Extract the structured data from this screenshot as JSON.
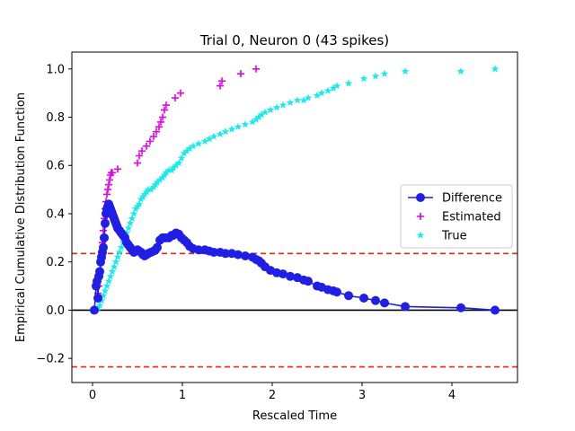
{
  "chart_data": {
    "type": "scatter",
    "title": "Trial 0, Neuron 0 (43 spikes)",
    "xlabel": "Rescaled Time",
    "ylabel": "Empirical Cumulative Distribution Function",
    "xlim": [
      -0.23,
      4.73
    ],
    "ylim": [
      -0.3,
      1.07
    ],
    "xticks": [
      0,
      1,
      2,
      3,
      4
    ],
    "xtick_labels": [
      "0",
      "1",
      "2",
      "3",
      "4"
    ],
    "yticks": [
      -0.2,
      0.0,
      0.2,
      0.4,
      0.6,
      0.8,
      1.0
    ],
    "ytick_labels": [
      "−0.2",
      "0.0",
      "0.2",
      "0.4",
      "0.6",
      "0.8",
      "1.0"
    ],
    "grid": false,
    "legend_position": "center-right",
    "reference_lines": [
      {
        "y": 0.0,
        "style": "solid",
        "color": "#000000"
      },
      {
        "y": 0.235,
        "style": "dashed",
        "color": "#e8291c"
      },
      {
        "y": -0.235,
        "style": "dashed",
        "color": "#e8291c"
      }
    ],
    "series": [
      {
        "name": "Difference",
        "kind": "line-marker",
        "marker": "circle",
        "color": "#1f1fe6",
        "x": [
          0.02,
          0.04,
          0.05,
          0.06,
          0.07,
          0.08,
          0.09,
          0.1,
          0.11,
          0.12,
          0.13,
          0.14,
          0.15,
          0.16,
          0.17,
          0.18,
          0.19,
          0.2,
          0.21,
          0.22,
          0.23,
          0.24,
          0.25,
          0.26,
          0.27,
          0.28,
          0.3,
          0.32,
          0.34,
          0.36,
          0.38,
          0.4,
          0.42,
          0.44,
          0.46,
          0.48,
          0.5,
          0.52,
          0.54,
          0.56,
          0.58,
          0.6,
          0.62,
          0.65,
          0.68,
          0.7,
          0.72,
          0.75,
          0.78,
          0.8,
          0.82,
          0.85,
          0.88,
          0.9,
          0.93,
          0.96,
          0.99,
          1.02,
          1.05,
          1.08,
          1.12,
          1.18,
          1.25,
          1.3,
          1.35,
          1.42,
          1.48,
          1.55,
          1.62,
          1.7,
          1.78,
          1.82,
          1.85,
          1.88,
          1.92,
          1.98,
          2.05,
          2.12,
          2.2,
          2.28,
          2.35,
          2.4,
          2.5,
          2.55,
          2.62,
          2.68,
          2.72,
          2.85,
          3.02,
          3.15,
          3.25,
          3.48,
          4.1,
          4.48
        ],
        "y": [
          0.0,
          0.1,
          0.12,
          0.05,
          0.14,
          0.16,
          0.2,
          0.22,
          0.24,
          0.26,
          0.3,
          0.36,
          0.4,
          0.42,
          0.43,
          0.44,
          0.43,
          0.42,
          0.41,
          0.4,
          0.39,
          0.38,
          0.37,
          0.36,
          0.35,
          0.34,
          0.33,
          0.32,
          0.31,
          0.3,
          0.28,
          0.27,
          0.26,
          0.25,
          0.24,
          0.245,
          0.25,
          0.245,
          0.24,
          0.23,
          0.225,
          0.23,
          0.235,
          0.24,
          0.245,
          0.25,
          0.26,
          0.29,
          0.3,
          0.3,
          0.3,
          0.3,
          0.31,
          0.31,
          0.32,
          0.315,
          0.3,
          0.29,
          0.28,
          0.265,
          0.255,
          0.25,
          0.25,
          0.245,
          0.24,
          0.24,
          0.235,
          0.235,
          0.23,
          0.225,
          0.22,
          0.21,
          0.205,
          0.195,
          0.18,
          0.165,
          0.155,
          0.15,
          0.14,
          0.135,
          0.125,
          0.12,
          0.1,
          0.095,
          0.085,
          0.08,
          0.075,
          0.06,
          0.05,
          0.04,
          0.03,
          0.015,
          0.01,
          0.0
        ]
      },
      {
        "name": "Estimated",
        "kind": "scatter",
        "marker": "plus",
        "color": "#e600e6",
        "x": [
          0.06,
          0.07,
          0.08,
          0.09,
          0.1,
          0.11,
          0.12,
          0.13,
          0.14,
          0.15,
          0.16,
          0.17,
          0.18,
          0.19,
          0.2,
          0.21,
          0.22,
          0.28,
          0.5,
          0.52,
          0.55,
          0.6,
          0.64,
          0.68,
          0.71,
          0.74,
          0.76,
          0.78,
          0.8,
          0.82,
          0.92,
          0.98,
          1.42,
          1.44,
          1.65,
          1.82
        ],
        "y": [
          0.07,
          0.1,
          0.14,
          0.19,
          0.24,
          0.28,
          0.33,
          0.38,
          0.42,
          0.45,
          0.48,
          0.5,
          0.52,
          0.54,
          0.56,
          0.57,
          0.57,
          0.585,
          0.61,
          0.64,
          0.66,
          0.68,
          0.7,
          0.72,
          0.74,
          0.76,
          0.78,
          0.8,
          0.83,
          0.85,
          0.88,
          0.9,
          0.93,
          0.95,
          0.98,
          1.0
        ]
      },
      {
        "name": "True",
        "kind": "scatter",
        "marker": "star",
        "color": "#19ecec",
        "x": [
          0.06,
          0.08,
          0.1,
          0.12,
          0.14,
          0.16,
          0.18,
          0.2,
          0.22,
          0.24,
          0.26,
          0.28,
          0.3,
          0.32,
          0.34,
          0.36,
          0.38,
          0.4,
          0.42,
          0.44,
          0.46,
          0.48,
          0.5,
          0.52,
          0.54,
          0.56,
          0.58,
          0.6,
          0.62,
          0.65,
          0.68,
          0.7,
          0.72,
          0.75,
          0.78,
          0.8,
          0.82,
          0.85,
          0.88,
          0.9,
          0.93,
          0.96,
          0.99,
          1.02,
          1.05,
          1.08,
          1.12,
          1.18,
          1.25,
          1.3,
          1.35,
          1.42,
          1.48,
          1.55,
          1.62,
          1.7,
          1.78,
          1.82,
          1.85,
          1.88,
          1.92,
          1.98,
          2.05,
          2.12,
          2.2,
          2.28,
          2.35,
          2.4,
          2.5,
          2.55,
          2.62,
          2.68,
          2.72,
          2.85,
          3.02,
          3.15,
          3.25,
          3.48,
          4.1,
          4.48
        ],
        "y": [
          0.01,
          0.02,
          0.04,
          0.06,
          0.08,
          0.1,
          0.12,
          0.14,
          0.16,
          0.18,
          0.2,
          0.22,
          0.24,
          0.26,
          0.28,
          0.3,
          0.32,
          0.34,
          0.36,
          0.38,
          0.4,
          0.42,
          0.43,
          0.44,
          0.46,
          0.47,
          0.48,
          0.49,
          0.5,
          0.5,
          0.51,
          0.52,
          0.53,
          0.54,
          0.55,
          0.56,
          0.57,
          0.58,
          0.58,
          0.59,
          0.6,
          0.61,
          0.63,
          0.65,
          0.66,
          0.67,
          0.68,
          0.69,
          0.7,
          0.71,
          0.72,
          0.73,
          0.74,
          0.75,
          0.76,
          0.77,
          0.78,
          0.79,
          0.8,
          0.81,
          0.82,
          0.83,
          0.84,
          0.85,
          0.86,
          0.87,
          0.87,
          0.88,
          0.89,
          0.9,
          0.91,
          0.92,
          0.93,
          0.94,
          0.96,
          0.97,
          0.98,
          0.99,
          0.99,
          1.0
        ]
      }
    ]
  }
}
